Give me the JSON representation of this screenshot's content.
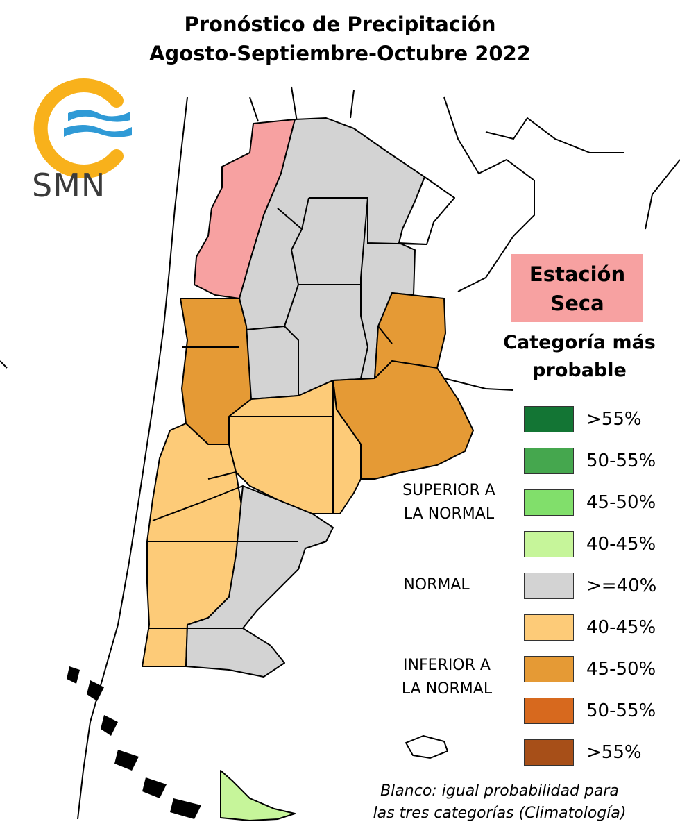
{
  "title": {
    "line1": "Pronóstico de Precipitación",
    "line2": "Agosto-Septiembre-Octubre 2022"
  },
  "logo": {
    "text": "SMN",
    "icon": "smn-logo-icon",
    "colors": {
      "ring": "#f8b11b",
      "waves": "#2f9ad6"
    }
  },
  "dry_station": {
    "line1": "Estación",
    "line2": "Seca",
    "color": "#f7a1a1"
  },
  "legend": {
    "title_line1": "Categoría más",
    "title_line2": "probable",
    "categories": {
      "superior": {
        "line1": "SUPERIOR A",
        "line2": "LA NORMAL"
      },
      "normal": "NORMAL",
      "inferior": {
        "line1": "INFERIOR A",
        "line2": "LA NORMAL"
      }
    },
    "items": [
      {
        "label": ">55%",
        "color": "#137534"
      },
      {
        "label": "50-55%",
        "color": "#45a74e"
      },
      {
        "label": "45-50%",
        "color": "#81df6b"
      },
      {
        "label": "40-45%",
        "color": "#c6f59a"
      },
      {
        "label": ">=40%",
        "color": "#d3d3d3"
      },
      {
        "label": "40-45%",
        "color": "#fdcb78"
      },
      {
        "label": "45-50%",
        "color": "#e59a35"
      },
      {
        "label": "50-55%",
        "color": "#d7691e"
      },
      {
        "label": ">55%",
        "color": "#a74f18"
      }
    ]
  },
  "footnote": {
    "line1": "Blanco: igual probabilidad para",
    "line2": "las tres categorías (Climatología)"
  },
  "map_colors": {
    "dry": "#f7a1a1",
    "normal": "#d3d3d3",
    "below_40_45": "#fdcb78",
    "below_45_50": "#e59a35",
    "above_40_45": "#c6f59a",
    "white": "#ffffff"
  }
}
